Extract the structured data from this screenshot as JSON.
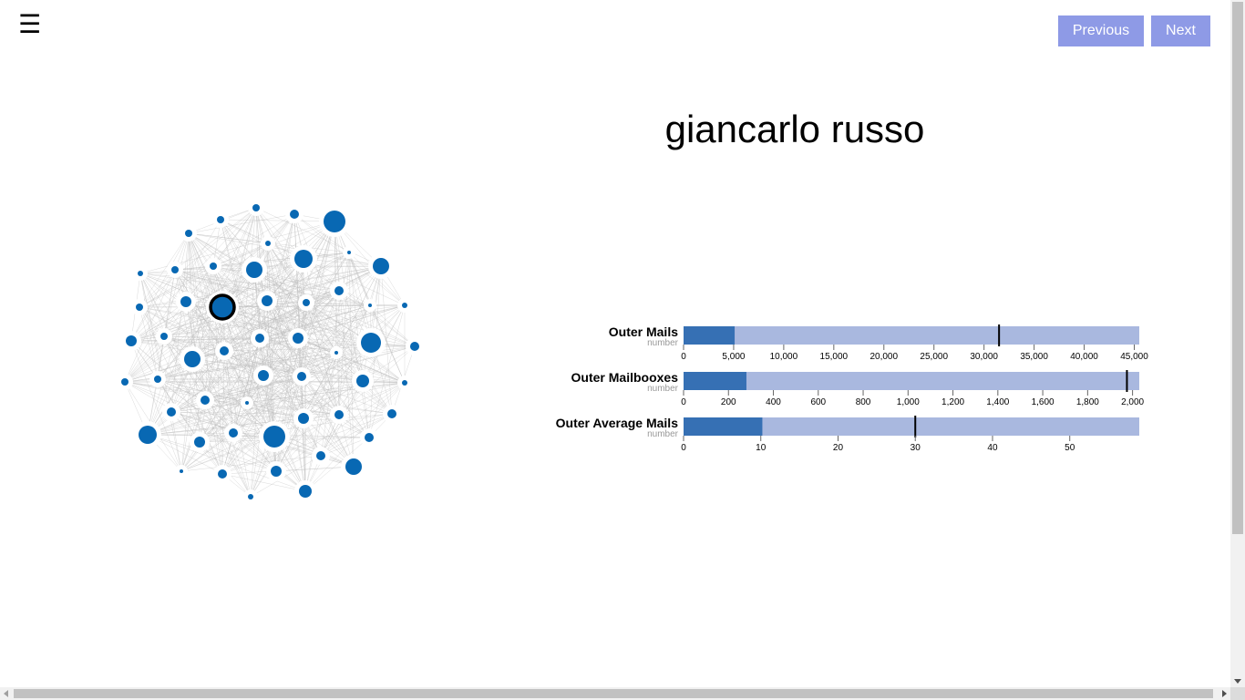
{
  "header": {
    "menu_icon": "hamburger-menu-icon",
    "menu_glyph": "☰",
    "previous_label": "Previous",
    "next_label": "Next",
    "button_color": "#8e9ae6"
  },
  "person": {
    "name": "giancarlo russo"
  },
  "colors": {
    "node": "#0868b3",
    "node_ring": "#ffffff",
    "selected_stroke": "#000000",
    "edge": "#bbbbbb",
    "bar_range": "#a9b8df",
    "bar_measure": "#3670b4",
    "marker": "#000000"
  },
  "chart_data": [
    {
      "type": "bullet",
      "title": "Outer Mails",
      "subtitle": "number",
      "range": 45500,
      "measure": 5100,
      "marker": 31500,
      "ticks": [
        "0",
        "5,000",
        "10,000",
        "15,000",
        "20,000",
        "25,000",
        "30,000",
        "35,000",
        "40,000",
        "45,000"
      ],
      "tick_values": [
        0,
        5000,
        10000,
        15000,
        20000,
        25000,
        30000,
        35000,
        40000,
        45000
      ]
    },
    {
      "type": "bullet",
      "title": "Outer Mailbooxes",
      "subtitle": "number",
      "range": 2030,
      "measure": 280,
      "marker": 1975,
      "ticks": [
        "0",
        "200",
        "400",
        "600",
        "800",
        "1,000",
        "1,200",
        "1,400",
        "1,600",
        "1,800",
        "2,000"
      ],
      "tick_values": [
        0,
        200,
        400,
        600,
        800,
        1000,
        1200,
        1400,
        1600,
        1800,
        2000
      ]
    },
    {
      "type": "bullet",
      "title": "Outer Average Mails",
      "subtitle": "number",
      "range": 59,
      "measure": 10.2,
      "marker": 30,
      "ticks": [
        "0",
        "10",
        "20",
        "30",
        "40",
        "50"
      ],
      "tick_values": [
        0,
        10,
        20,
        30,
        40,
        50
      ]
    }
  ]
}
